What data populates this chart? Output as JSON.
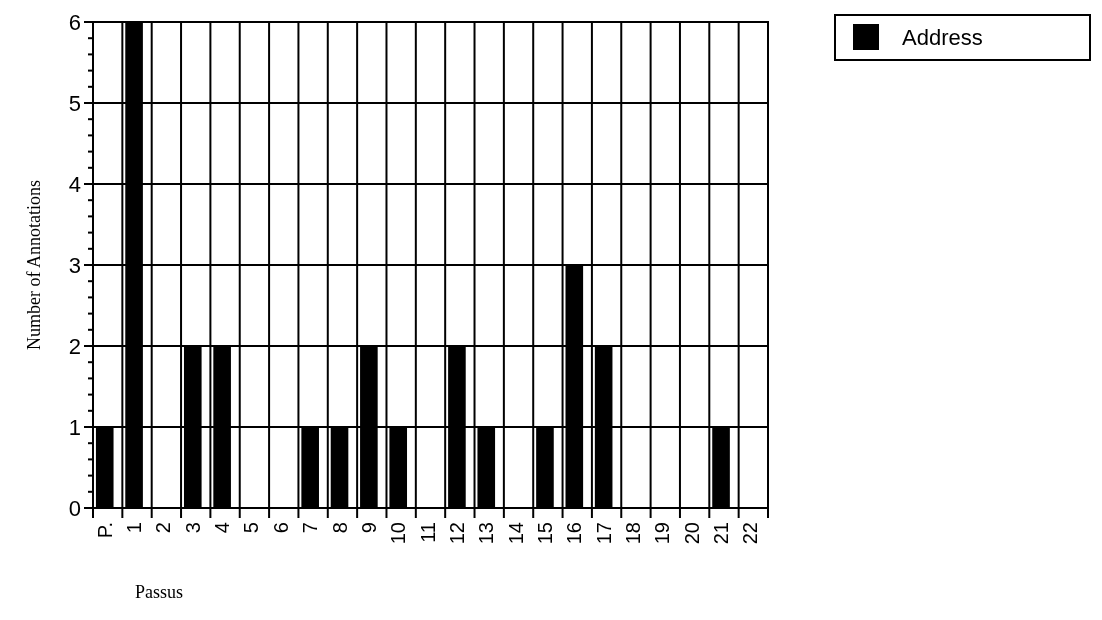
{
  "chart_data": {
    "type": "bar",
    "xlabel": "Passus",
    "ylabel": "Number of Annotations",
    "categories": [
      "P.",
      "1",
      "2",
      "3",
      "4",
      "5",
      "6",
      "7",
      "8",
      "9",
      "10",
      "11",
      "12",
      "13",
      "14",
      "15",
      "16",
      "17",
      "18",
      "19",
      "20",
      "21",
      "22"
    ],
    "series": [
      {
        "name": "Address",
        "color": "#000000",
        "values": [
          1,
          6,
          0,
          2,
          2,
          0,
          0,
          1,
          1,
          2,
          1,
          0,
          2,
          1,
          0,
          1,
          3,
          2,
          0,
          0,
          0,
          1,
          0
        ]
      }
    ],
    "ylim": [
      0,
      6
    ],
    "yticks": [
      0,
      {
        "value": 0.2,
        "label": null
      },
      {
        "value": 0.4,
        "label": null
      },
      {
        "value": 0.6,
        "label": null
      },
      {
        "value": 0.8,
        "label": null
      },
      1,
      {
        "value": 1.2,
        "label": null
      },
      {
        "value": 1.4,
        "label": null
      },
      {
        "value": 1.6,
        "label": null
      },
      {
        "value": 1.8,
        "label": null
      },
      2,
      {
        "value": 2.2,
        "label": null
      },
      {
        "value": 2.4,
        "label": null
      },
      {
        "value": 2.6,
        "label": null
      },
      {
        "value": 2.8,
        "label": null
      },
      3,
      {
        "value": 3.2,
        "label": null
      },
      {
        "value": 3.4,
        "label": null
      },
      {
        "value": 3.6,
        "label": null
      },
      {
        "value": 3.8,
        "label": null
      },
      4,
      {
        "value": 4.2,
        "label": null
      },
      {
        "value": 4.4,
        "label": null
      },
      {
        "value": 4.6,
        "label": null
      },
      {
        "value": 4.8,
        "label": null
      },
      5,
      {
        "value": 5.2,
        "label": null
      },
      {
        "value": 5.4,
        "label": null
      },
      {
        "value": 5.6,
        "label": null
      },
      {
        "value": 5.8,
        "label": null
      },
      6
    ],
    "grid": true,
    "legend": "top right"
  }
}
